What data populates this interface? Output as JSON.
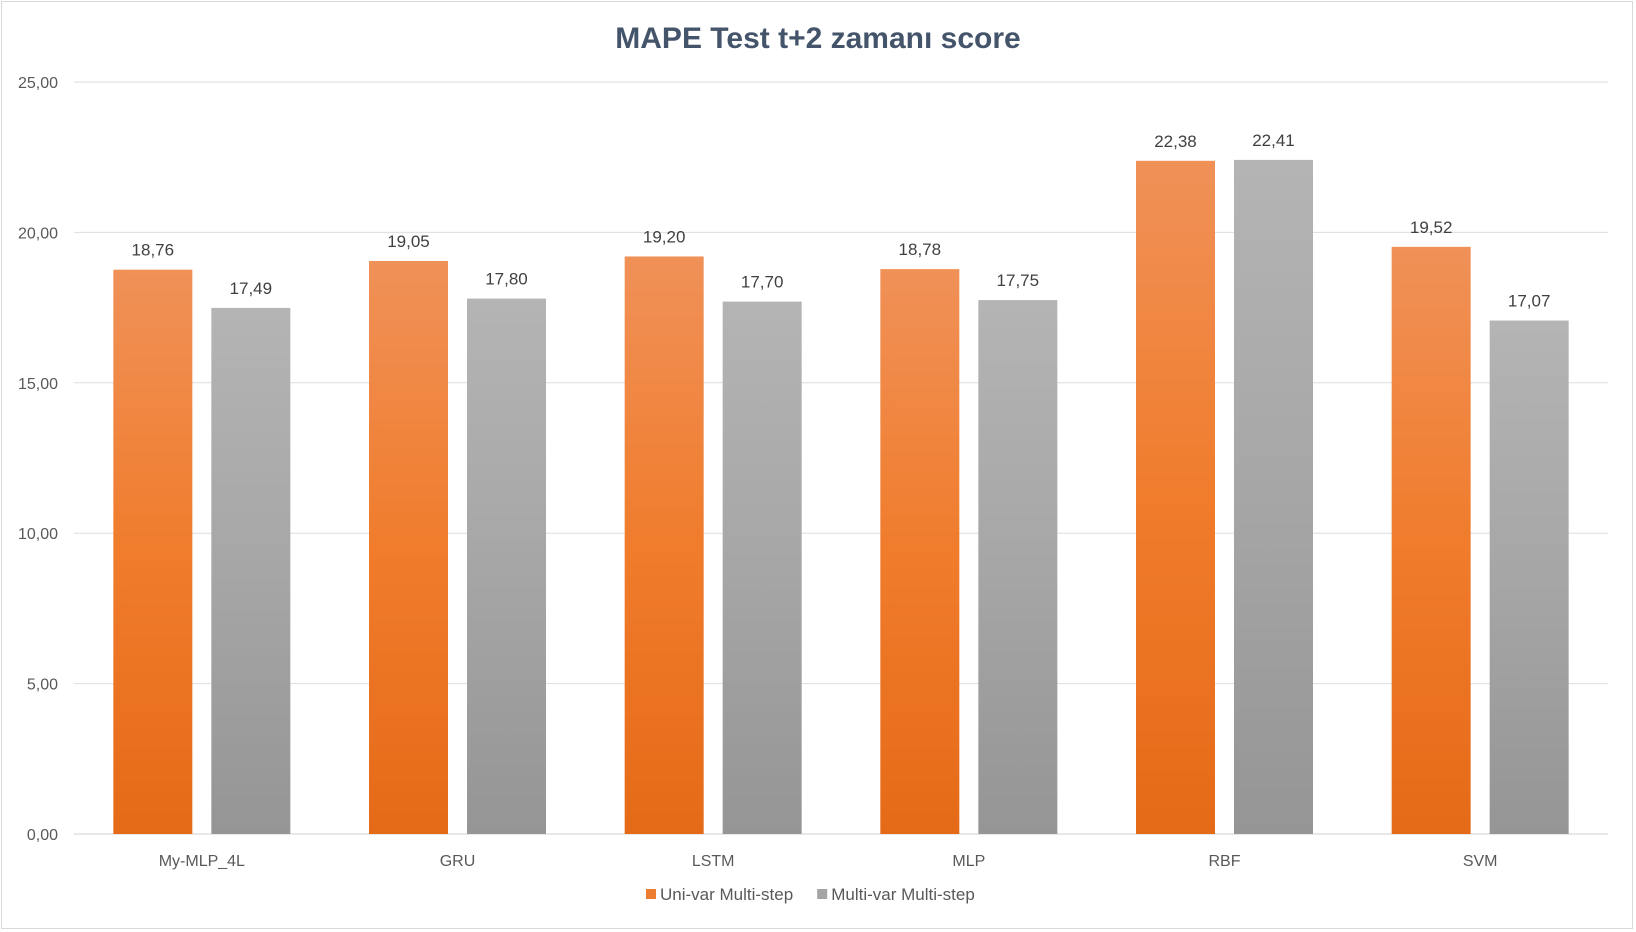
{
  "chart_data": {
    "type": "bar",
    "title": "MAPE Test t+2 zamanı score",
    "xlabel": "",
    "ylabel": "",
    "ylim": [
      0,
      25
    ],
    "yticks": [
      0,
      5,
      10,
      15,
      20,
      25
    ],
    "ytick_labels": [
      "0,00",
      "5,00",
      "10,00",
      "15,00",
      "20,00",
      "25,00"
    ],
    "grid": true,
    "legend_position": "bottom",
    "categories": [
      "My-MLP_4L",
      "GRU",
      "LSTM",
      "MLP",
      "RBF",
      "SVM"
    ],
    "series": [
      {
        "name": "Uni-var Multi-step",
        "color": "#ed7d31",
        "values": [
          18.76,
          19.05,
          19.2,
          18.78,
          22.38,
          19.52
        ],
        "labels": [
          "18,76",
          "19,05",
          "19,20",
          "18,78",
          "22,38",
          "19,52"
        ]
      },
      {
        "name": "Multi-var Multi-step",
        "color": "#a5a5a5",
        "values": [
          17.49,
          17.8,
          17.7,
          17.75,
          22.41,
          17.07
        ],
        "labels": [
          "17,49",
          "17,80",
          "17,70",
          "17,75",
          "22,41",
          "17,07"
        ]
      }
    ]
  }
}
